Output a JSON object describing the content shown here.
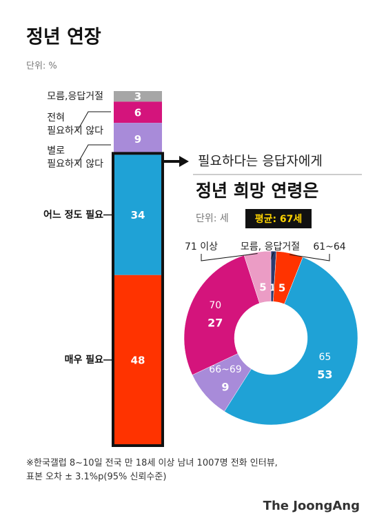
{
  "chart_data": [
    {
      "type": "stacked-bar",
      "title": "정년 연장",
      "unit": "단위: %",
      "categories": [
        "모름,응답거절",
        "전혀\n필요하지 않다",
        "별로\n필요하지 않다",
        "어느 정도 필요",
        "매우 필요"
      ],
      "values": [
        3,
        6,
        9,
        34,
        48
      ],
      "colors": [
        "#a6a6a6",
        "#d4147c",
        "#a88bd9",
        "#1fa2d6",
        "#ff3300"
      ]
    },
    {
      "type": "donut",
      "annotation": "필요하다는 응답자에게",
      "title": "정년 희망 연령은",
      "unit": "단위: 세",
      "average": "평균: 67세",
      "categories": [
        "모름, 응답거절",
        "61~64",
        "65",
        "66~69",
        "70",
        "71 이상"
      ],
      "values": [
        1,
        5,
        53,
        9,
        27,
        5
      ],
      "colors": [
        "#2b3a6e",
        "#ff3300",
        "#1fa2d6",
        "#a88bd9",
        "#d4147c",
        "#eb9cc5"
      ]
    }
  ],
  "footnote": "※한국갤럽 8~10일 전국 만 18세 이상 남녀 1007명 전화 인터뷰,\n표본 오차 ± 3.1%p(95% 신뢰수준)",
  "source": "The JoongAng"
}
